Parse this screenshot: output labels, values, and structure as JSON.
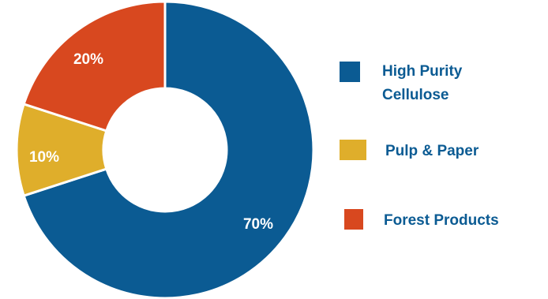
{
  "chart_data": {
    "type": "pie",
    "donut": true,
    "categories": [
      "High Purity Cellulose",
      "Pulp & Paper",
      "Forest Products"
    ],
    "values": [
      70,
      10,
      20
    ],
    "unit": "%",
    "data_labels": [
      "70%",
      "10%",
      "20%"
    ],
    "colors": [
      "#0b5b93",
      "#dfae2b",
      "#d8481f"
    ],
    "legend": {
      "position": "right",
      "items": [
        {
          "label_lines": [
            "High Purity",
            "Cellulose"
          ],
          "color": "#0b5b93"
        },
        {
          "label_lines": [
            "Pulp & Paper"
          ],
          "color": "#dfae2b"
        },
        {
          "label_lines": [
            "Forest Products"
          ],
          "color": "#d8481f"
        }
      ]
    }
  }
}
